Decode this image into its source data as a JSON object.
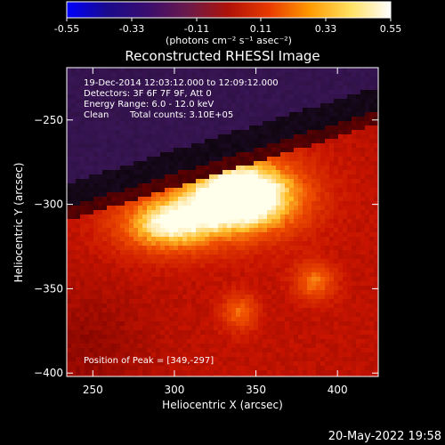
{
  "colorbar": {
    "ticks": [
      "-0.55",
      "-0.33",
      "-0.11",
      "0.11",
      "0.33",
      "0.55"
    ],
    "units": "(photons cm⁻² s⁻¹ asec⁻²)",
    "colors": [
      "#0000ff",
      "#1a0a8c",
      "#3a0d6e",
      "#6b1a4a",
      "#b01208",
      "#e83a00",
      "#ff9a00",
      "#ffe060",
      "#ffffff"
    ]
  },
  "chart_data": {
    "type": "heatmap",
    "title": "Reconstructed RHESSI Image",
    "xlabel": "Heliocentric X (arcsec)",
    "ylabel": "Heliocentric Y (arcsec)",
    "xlim": [
      234,
      425
    ],
    "ylim": [
      -402,
      -219
    ],
    "xticks": [
      250,
      300,
      350,
      400
    ],
    "yticks": [
      -250,
      -300,
      -350,
      -400
    ],
    "annotations": {
      "time_range": "19-Dec-2014 12:03:12.000 to 12:09:12.000",
      "detectors": "Detectors: 3F 6F 7F 9F, Att 0",
      "energy_range": "Energy Range: 6.0 - 12.0 keV",
      "method": "Clean",
      "total_counts": "Total counts: 3.10E+05",
      "peak": "Position of Peak = [349,-297]"
    },
    "sources": [
      {
        "x": 342,
        "y": -295,
        "peak": 0.55
      },
      {
        "x": 295,
        "y": -312,
        "peak": 0.36
      },
      {
        "x": 386,
        "y": -346,
        "peak": 0.22
      },
      {
        "x": 340,
        "y": -364,
        "peak": 0.2
      }
    ]
  },
  "footer": {
    "datetime": "20-May-2022 19:58"
  }
}
